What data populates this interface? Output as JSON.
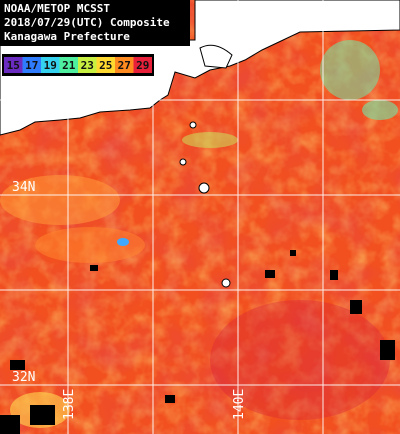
{
  "title_lines": [
    "NOAA/METOP MCSST",
    "2018/07/29(UTC) Composite",
    "Kanagawa Prefecture"
  ],
  "colorbar": {
    "ticks": [
      15,
      17,
      19,
      21,
      23,
      25,
      27,
      29
    ],
    "colors": [
      "#6a2cc0",
      "#2f7cff",
      "#35d2f0",
      "#4ef0a0",
      "#c8f040",
      "#ffd830",
      "#ff8a20",
      "#e8203a"
    ]
  },
  "lat_labels": [
    "34N",
    "32N"
  ],
  "lon_labels": [
    "138E",
    "140E"
  ]
}
